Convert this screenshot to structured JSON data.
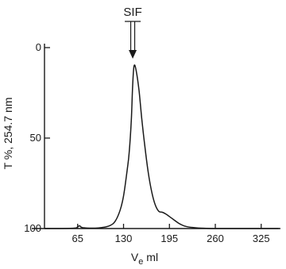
{
  "chart_data": {
    "type": "line",
    "title": "",
    "xlabel_main": "V",
    "xlabel_sub": "e",
    "xlabel_unit": "ml",
    "ylabel": "T %,  254.7 nm",
    "x_ticks": [
      65,
      130,
      195,
      260,
      325
    ],
    "y_ticks": [
      0,
      50,
      100
    ],
    "xlim": [
      0,
      350
    ],
    "ylim": [
      100,
      0
    ],
    "y_inverted": true,
    "grid": false,
    "line_color": "#1a1a1a",
    "annotation": {
      "label": "SIF",
      "x": 143
    },
    "series": [
      {
        "x": [
          0,
          30,
          60,
          65,
          68,
          72,
          90,
          100,
          110,
          118,
          125,
          130,
          135,
          138,
          141,
          143,
          145,
          148,
          152,
          156,
          160,
          165,
          170,
          175,
          180,
          185,
          190,
          200,
          210,
          220,
          240,
          260,
          300,
          340,
          350
        ],
        "y": [
          100,
          100,
          99.8,
          99,
          98.5,
          99.5,
          99.8,
          99.4,
          98.5,
          96,
          90,
          82,
          68,
          58,
          40,
          20,
          10,
          13,
          24,
          40,
          54,
          69,
          80,
          87,
          90.5,
          91,
          92,
          94.8,
          97.5,
          99,
          99.8,
          100,
          100,
          100,
          100
        ]
      }
    ]
  }
}
